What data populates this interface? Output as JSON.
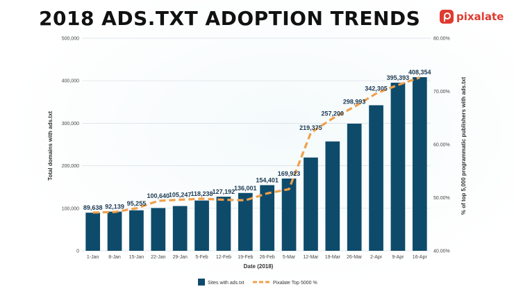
{
  "header": {
    "title": "2018 ADS.TXT ADOPTION TRENDS",
    "logo_text": "pixalate"
  },
  "colors": {
    "bar": "#0e4b6b",
    "line": "#f0a04b",
    "accent": "#e03a2f"
  },
  "chart_data": {
    "type": "bar",
    "xlabel": "Date (2018)",
    "ylabel": "Total domains with ads.txt",
    "y2label": "% of top 5,000 programmatic publishers with ads.txt",
    "ylim": [
      0,
      500000
    ],
    "y2lim": [
      40,
      80
    ],
    "yticks": [
      "0",
      "100,000",
      "200,000",
      "300,000",
      "400,000",
      "500,000"
    ],
    "y2ticks": [
      "40.00%",
      "50.00%",
      "60.00%",
      "70.00%",
      "80.00%"
    ],
    "categories": [
      "1-Jan",
      "8-Jan",
      "15-Jan",
      "22-Jan",
      "29-Jan",
      "5-Feb",
      "12-Feb",
      "19-Feb",
      "26-Feb",
      "5-Mar",
      "12-Mar",
      "19-Mar",
      "26-Mar",
      "2-Apr",
      "9-Apr",
      "16-Apr"
    ],
    "series": [
      {
        "name": "Sites with ads.txt",
        "type": "bar",
        "values": [
          89638,
          92139,
          95255,
          100640,
          105247,
          118238,
          127192,
          136001,
          154401,
          169923,
          219375,
          257200,
          298993,
          342305,
          395393,
          408354
        ],
        "labels": [
          "89,638",
          "92,139",
          "95,255",
          "100,640",
          "105,247",
          "118,238",
          "127,192",
          "136,001",
          "154,401",
          "169,923",
          "219,375",
          "257,200",
          "298,993",
          "342,305",
          "395,393",
          "408,354"
        ]
      },
      {
        "name": "Pixalate Top 5000 %",
        "type": "line",
        "axis": "right",
        "values": [
          47.2,
          47.3,
          48.0,
          49.4,
          49.6,
          49.8,
          49.6,
          49.5,
          50.8,
          51.6,
          62.2,
          64.9,
          67.1,
          69.6,
          71.2,
          72.6
        ]
      }
    ],
    "legend": "bottom",
    "grid": true
  }
}
